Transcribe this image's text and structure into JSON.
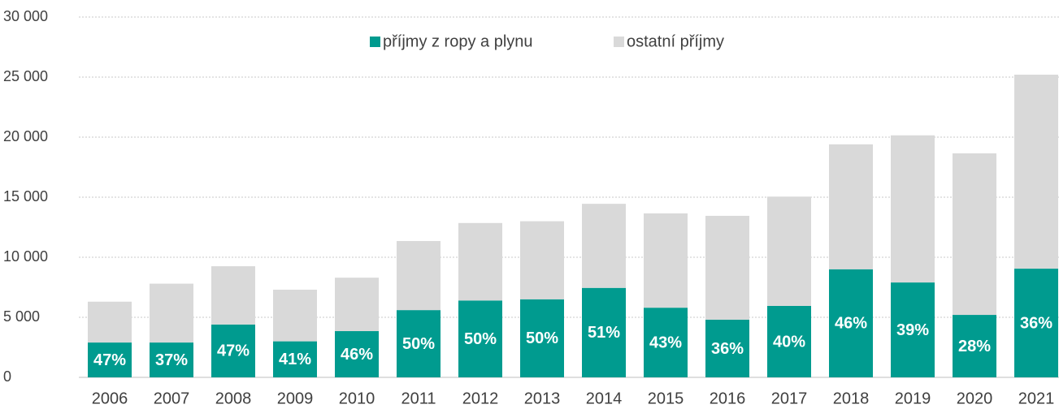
{
  "chart_data": {
    "type": "stacked_bar",
    "categories": [
      "2006",
      "2007",
      "2008",
      "2009",
      "2010",
      "2011",
      "2012",
      "2013",
      "2014",
      "2015",
      "2016",
      "2017",
      "2018",
      "2019",
      "2020",
      "2021"
    ],
    "series": [
      {
        "name": "příjmy z ropy a plynu",
        "color": "#009b8f",
        "values": [
          2900,
          2900,
          4400,
          3000,
          3850,
          5600,
          6400,
          6500,
          7450,
          5800,
          4800,
          5950,
          9000,
          7900,
          5200,
          9050
        ],
        "labels": [
          "47%",
          "37%",
          "47%",
          "41%",
          "46%",
          "50%",
          "50%",
          "50%",
          "51%",
          "43%",
          "36%",
          "40%",
          "46%",
          "39%",
          "28%",
          "36%"
        ]
      },
      {
        "name": "ostatní příjmy",
        "color": "#d9d9d9",
        "values": [
          3400,
          4900,
          4850,
          4300,
          4450,
          5750,
          6450,
          6500,
          7000,
          7850,
          8650,
          9100,
          10400,
          12250,
          13450,
          16150
        ]
      }
    ],
    "ylim": [
      0,
      30000
    ],
    "yticks": [
      0,
      {
        "value": 5000,
        "label": "5 000"
      },
      {
        "value": 10000,
        "label": "10 000"
      },
      {
        "value": 15000,
        "label": "15 000"
      },
      {
        "value": 20000,
        "label": "20 000"
      },
      {
        "value": 25000,
        "label": "25 000"
      },
      {
        "value": 30000,
        "label": "30 000"
      }
    ],
    "grid": true
  }
}
